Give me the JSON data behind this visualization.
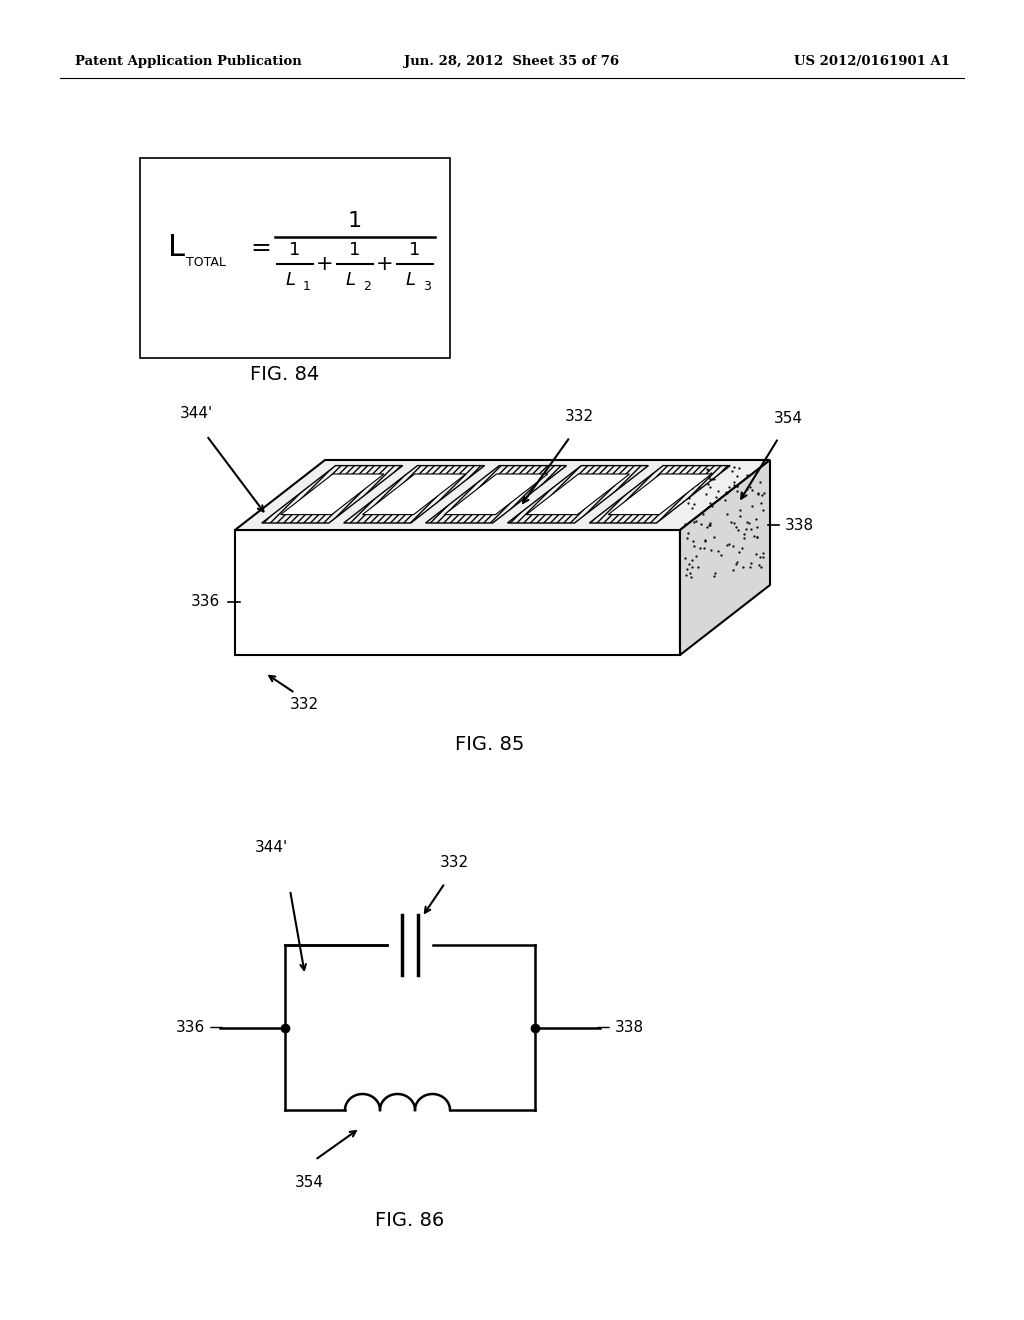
{
  "header_left": "Patent Application Publication",
  "header_center": "Jun. 28, 2012  Sheet 35 of 76",
  "header_right": "US 2012/0161901 A1",
  "fig84_caption": "FIG. 84",
  "fig85_caption": "FIG. 85",
  "fig86_caption": "FIG. 86",
  "background_color": "#ffffff",
  "text_color": "#000000"
}
